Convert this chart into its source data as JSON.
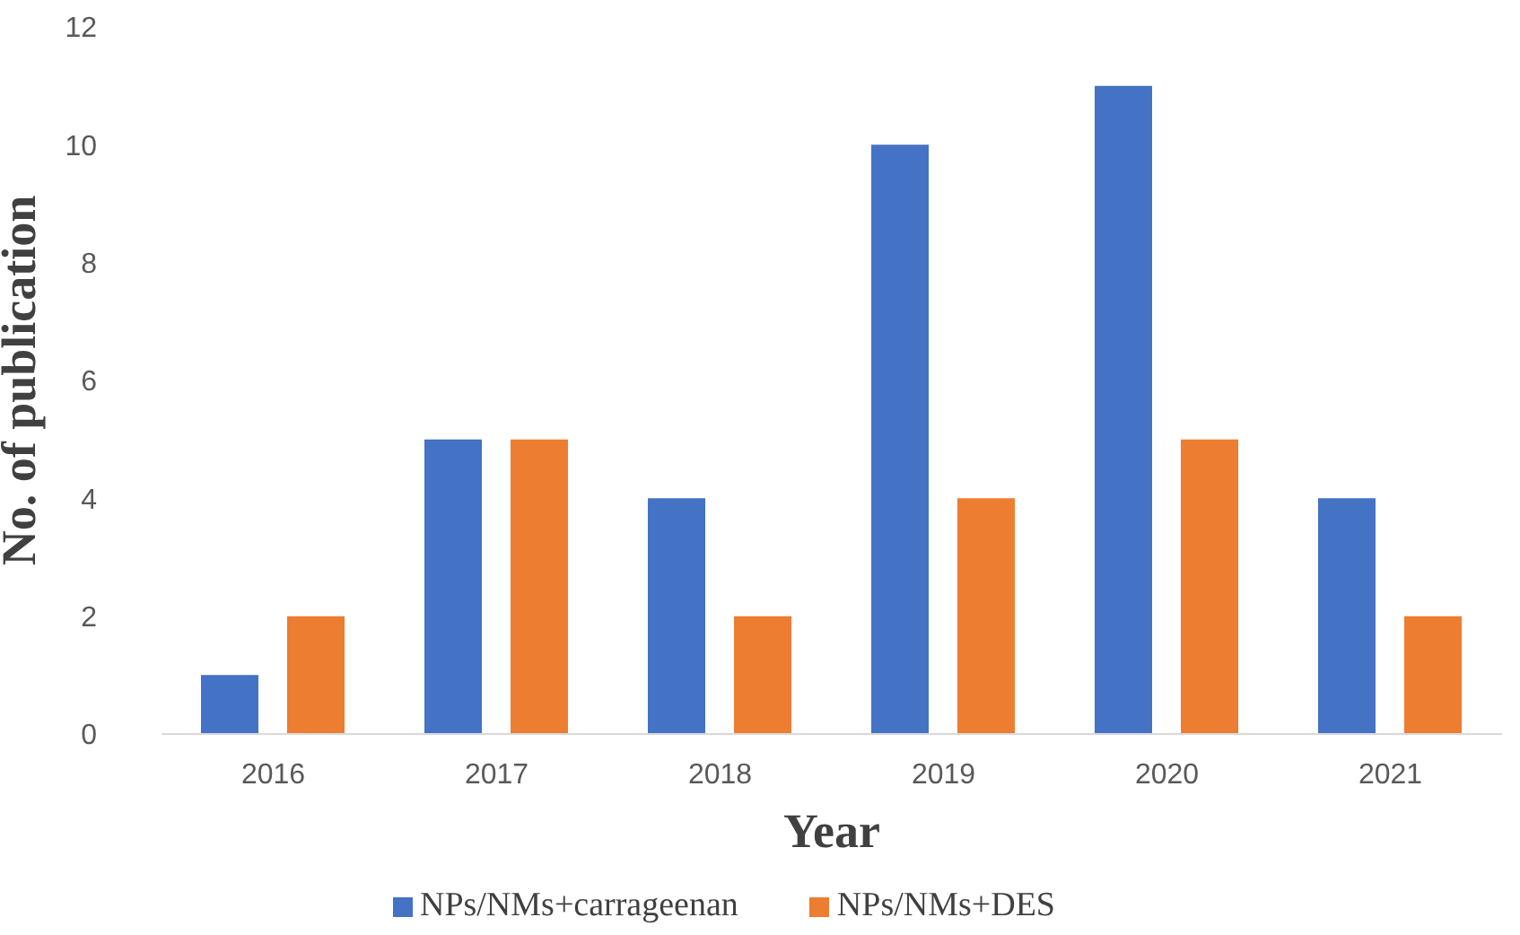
{
  "chart_data": {
    "type": "bar",
    "xlabel": "Year",
    "ylabel": "No. of publication",
    "categories": [
      "2016",
      "2017",
      "2018",
      "2019",
      "2020",
      "2021"
    ],
    "series": [
      {
        "name": "NPs/NMs+carrageenan",
        "color": "#4472c4",
        "values": [
          1,
          5,
          4,
          10,
          11,
          4
        ]
      },
      {
        "name": "NPs/NMs+DES",
        "color": "#ed7d31",
        "values": [
          2,
          5,
          2,
          4,
          5,
          2
        ]
      }
    ],
    "ylim": [
      0,
      12
    ],
    "yticks": [
      0,
      2,
      4,
      6,
      8,
      10,
      12
    ],
    "legend": "bottom"
  }
}
